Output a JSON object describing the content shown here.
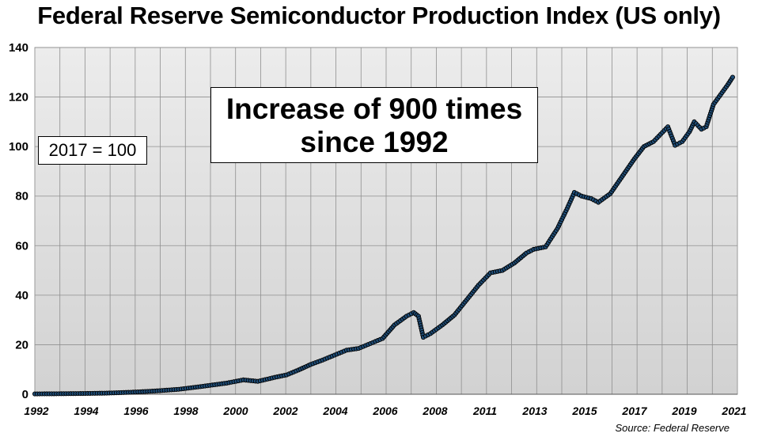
{
  "chart_data": {
    "type": "line",
    "title": "Federal Reserve Semiconductor Production Index (US only)",
    "xlabel": "",
    "ylabel": "",
    "ylim": [
      0,
      140
    ],
    "yticks": [
      0,
      20,
      40,
      60,
      80,
      100,
      120,
      140
    ],
    "xlim": [
      1992,
      2021.3
    ],
    "xtick_labels": [
      "1992",
      "1994",
      "1996",
      "1998",
      "2000",
      "2002",
      "2004",
      "2006",
      "2008",
      "2011",
      "2013",
      "2015",
      "2017",
      "2019",
      "2021"
    ],
    "grid": true,
    "series": [
      {
        "name": "Semiconductor Production Index",
        "color": "#1f4e79",
        "x": [
          1992,
          1993,
          1994,
          1995,
          1996,
          1997,
          1998,
          1999,
          2000,
          2000.7,
          2001.3,
          2002,
          2002.5,
          2003,
          2003.5,
          2004,
          2004.5,
          2005,
          2005.5,
          2006,
          2006.5,
          2007,
          2007.5,
          2007.8,
          2008,
          2008.2,
          2008.5,
          2009,
          2009.5,
          2010,
          2010.5,
          2011,
          2011.5,
          2012,
          2012.5,
          2012.8,
          2013.3,
          2013.8,
          2014.2,
          2014.5,
          2014.8,
          2015.2,
          2015.5,
          2016,
          2016.5,
          2017,
          2017.4,
          2017.8,
          2018.1,
          2018.4,
          2018.7,
          2019,
          2019.3,
          2019.5,
          2019.8,
          2020,
          2020.3,
          2020.6,
          2020.9,
          2021.1
        ],
        "values": [
          0.14,
          0.2,
          0.3,
          0.45,
          0.8,
          1.3,
          2.0,
          3.2,
          4.5,
          5.8,
          5.2,
          6.8,
          7.8,
          9.8,
          12.0,
          13.8,
          15.8,
          17.8,
          18.5,
          20.5,
          22.5,
          28.0,
          31.5,
          33.0,
          31.5,
          23.0,
          24.5,
          28.0,
          32.0,
          38.0,
          44.0,
          49.0,
          50.0,
          53.0,
          57.0,
          58.5,
          59.5,
          67.0,
          75.0,
          81.5,
          80.0,
          79.0,
          77.5,
          81.0,
          88.0,
          95.0,
          100.0,
          102.0,
          105.0,
          108.0,
          100.5,
          102.0,
          106.0,
          110.0,
          107.0,
          108.0,
          117.0,
          121.0,
          125.0,
          128.0
        ]
      }
    ],
    "annotations": {
      "main": [
        "Increase of 900 times",
        "since 1992"
      ],
      "base": "2017 = 100"
    },
    "source": "Source: Federal Reserve"
  }
}
